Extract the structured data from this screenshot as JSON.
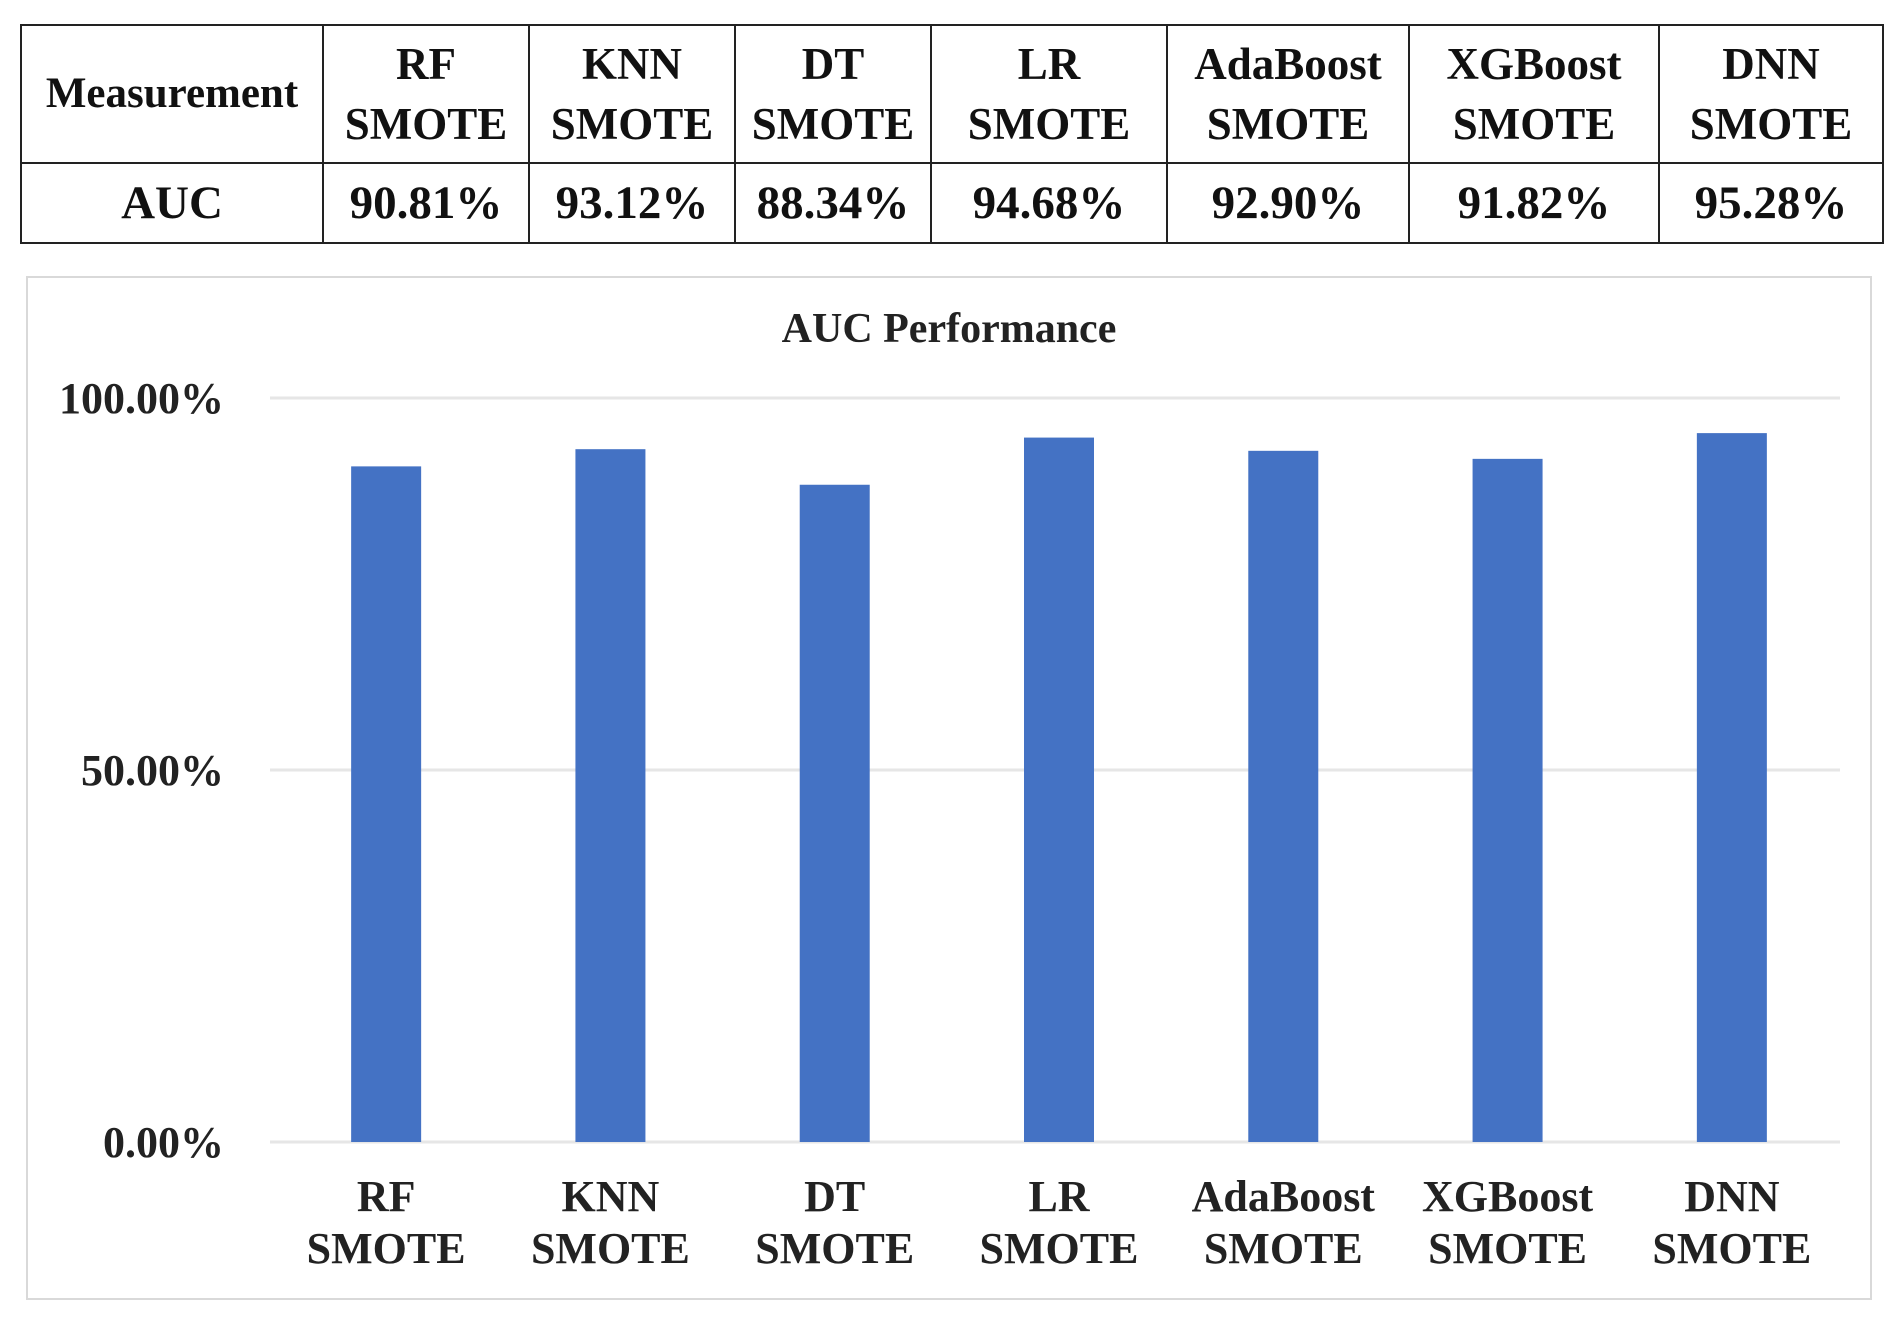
{
  "table": {
    "header_first": "Measurement",
    "columns": [
      {
        "line1": "RF",
        "line2": "SMOTE"
      },
      {
        "line1": "KNN",
        "line2": "SMOTE"
      },
      {
        "line1": "DT",
        "line2": "SMOTE"
      },
      {
        "line1": "LR",
        "line2": "SMOTE"
      },
      {
        "line1": "AdaBoost",
        "line2": "SMOTE"
      },
      {
        "line1": "XGBoost",
        "line2": "SMOTE"
      },
      {
        "line1": "DNN",
        "line2": "SMOTE"
      }
    ],
    "row_label": "AUC",
    "row_values": [
      "90.81%",
      "93.12%",
      "88.34%",
      "94.68%",
      "92.90%",
      "91.82%",
      "95.28%"
    ]
  },
  "chart_data": {
    "type": "bar",
    "title": "AUC Performance",
    "categories": [
      [
        "RF",
        "SMOTE"
      ],
      [
        "KNN",
        "SMOTE"
      ],
      [
        "DT",
        "SMOTE"
      ],
      [
        "LR",
        "SMOTE"
      ],
      [
        "AdaBoost",
        "SMOTE"
      ],
      [
        "XGBoost",
        "SMOTE"
      ],
      [
        "DNN",
        "SMOTE"
      ]
    ],
    "values": [
      90.81,
      93.12,
      88.34,
      94.68,
      92.9,
      91.82,
      95.28
    ],
    "ylim": [
      0,
      100
    ],
    "yticks": [
      0,
      50,
      100
    ],
    "ytick_labels": [
      "0.00%",
      "50.00%",
      "100.00%"
    ],
    "grid": true,
    "bar_color": "#4472c4",
    "grid_color": "#e6e6e6"
  }
}
